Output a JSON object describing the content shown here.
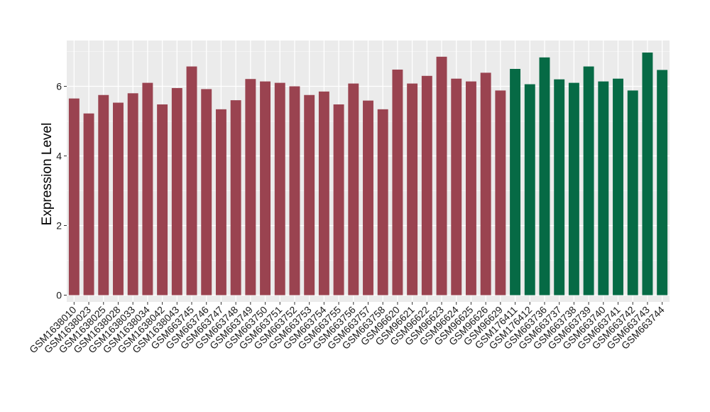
{
  "chart_data": {
    "type": "bar",
    "title": "",
    "xlabel": "",
    "ylabel": "Expression Level",
    "ylim": [
      0,
      7.2
    ],
    "yticks": [
      0,
      2,
      4,
      6
    ],
    "grid": true,
    "panel_background": "#EBEBEB",
    "colors": {
      "group1": "#9A4350",
      "group2": "#066A45"
    },
    "categories": [
      "GSM1638010",
      "GSM1638023",
      "GSM1638025",
      "GSM1638028",
      "GSM1638033",
      "GSM1638034",
      "GSM1638042",
      "GSM1638043",
      "GSM663745",
      "GSM663746",
      "GSM663747",
      "GSM663748",
      "GSM663749",
      "GSM663750",
      "GSM663751",
      "GSM663752",
      "GSM663753",
      "GSM663754",
      "GSM663755",
      "GSM663756",
      "GSM663757",
      "GSM663758",
      "GSM96620",
      "GSM96621",
      "GSM96622",
      "GSM96623",
      "GSM96624",
      "GSM96625",
      "GSM96626",
      "GSM96629",
      "GSM176411",
      "GSM176412",
      "GSM663736",
      "GSM663737",
      "GSM663738",
      "GSM663739",
      "GSM663740",
      "GSM663741",
      "GSM663742",
      "GSM663743",
      "GSM663744"
    ],
    "values": [
      5.65,
      5.22,
      5.75,
      5.53,
      5.8,
      6.1,
      5.48,
      5.95,
      6.57,
      5.92,
      5.34,
      5.6,
      6.21,
      6.14,
      6.1,
      6.0,
      5.75,
      5.85,
      5.48,
      6.08,
      5.59,
      5.34,
      6.48,
      6.08,
      6.3,
      6.85,
      6.22,
      6.14,
      6.39,
      5.88,
      6.5,
      6.06,
      6.83,
      6.2,
      6.1,
      6.57,
      6.14,
      6.22,
      5.88,
      6.97,
      6.47
    ],
    "groups": [
      1,
      1,
      1,
      1,
      1,
      1,
      1,
      1,
      1,
      1,
      1,
      1,
      1,
      1,
      1,
      1,
      1,
      1,
      1,
      1,
      1,
      1,
      1,
      1,
      1,
      1,
      1,
      1,
      1,
      1,
      2,
      2,
      2,
      2,
      2,
      2,
      2,
      2,
      2,
      2,
      2
    ]
  }
}
